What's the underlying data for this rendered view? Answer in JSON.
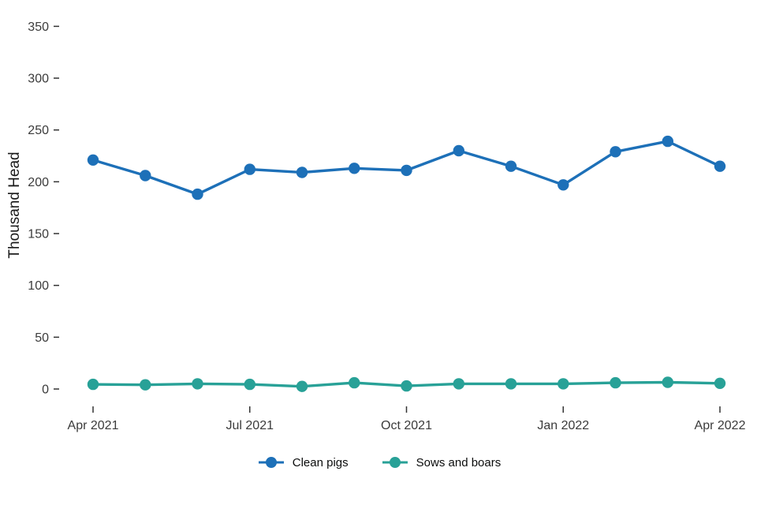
{
  "chart_data": {
    "type": "line",
    "x": [
      "Apr 2021",
      "May 2021",
      "Jun 2021",
      "Jul 2021",
      "Aug 2021",
      "Sep 2021",
      "Oct 2021",
      "Nov 2021",
      "Dec 2021",
      "Jan 2022",
      "Feb 2022",
      "Mar 2022",
      "Apr 2022"
    ],
    "x_tick_labels": [
      "Apr 2021",
      "Jul 2021",
      "Oct 2021",
      "Jan 2022",
      "Apr 2022"
    ],
    "x_tick_indices": [
      0,
      3,
      6,
      9,
      12
    ],
    "series": [
      {
        "name": "Clean pigs",
        "color": "#1d70b8",
        "values": [
          221,
          206,
          188,
          212,
          209,
          213,
          211,
          230,
          215,
          197,
          229,
          239,
          215
        ]
      },
      {
        "name": "Sows and boars",
        "color": "#28a197",
        "values": [
          4.5,
          4,
          5,
          4.5,
          2.5,
          6,
          3,
          5,
          5,
          5,
          6,
          6.5,
          5.5
        ]
      }
    ],
    "ylabel": "Thousand Head",
    "y_ticks": [
      0,
      50,
      100,
      150,
      200,
      250,
      300,
      350
    ],
    "ylim": [
      0,
      364
    ],
    "grid": false,
    "legend_position": "bottom",
    "text_color": "#3b3b3b",
    "tick_color": "#333333"
  }
}
